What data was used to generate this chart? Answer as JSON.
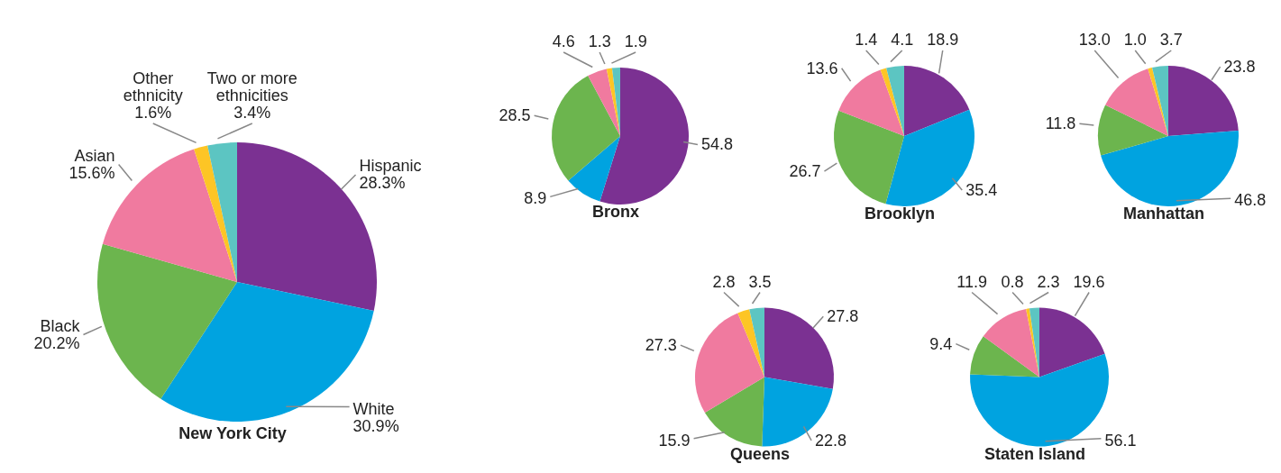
{
  "chart_data": [
    {
      "type": "pie",
      "title": "New York City",
      "categories": [
        "Hispanic",
        "White",
        "Black",
        "Asian",
        "Other ethnicity",
        "Two or more ethnicities"
      ],
      "values": [
        28.3,
        30.9,
        20.2,
        15.6,
        1.6,
        3.4
      ],
      "value_labels": [
        "28.3%",
        "30.9%",
        "20.2%",
        "15.6%",
        "1.6%",
        "3.4%"
      ],
      "colors": [
        "#7b3192",
        "#00a3e0",
        "#6cb54e",
        "#f07a9f",
        "#fdc525",
        "#5cc5c2"
      ]
    },
    {
      "type": "pie",
      "title": "Bronx",
      "categories": [
        null,
        null,
        null,
        null,
        null,
        null
      ],
      "values": [
        54.8,
        8.9,
        28.5,
        4.6,
        1.3,
        1.9
      ],
      "value_labels": [
        "54.8",
        "8.9",
        "28.5",
        "4.6",
        "1.3",
        "1.9"
      ],
      "colors": [
        "#7b3192",
        "#00a3e0",
        "#6cb54e",
        "#f07a9f",
        "#fdc525",
        "#5cc5c2"
      ]
    },
    {
      "type": "pie",
      "title": "Brooklyn",
      "categories": [
        null,
        null,
        null,
        null,
        null,
        null
      ],
      "values": [
        18.9,
        35.4,
        26.7,
        13.6,
        1.4,
        4.1
      ],
      "value_labels": [
        "18.9",
        "35.4",
        "26.7",
        "13.6",
        "1.4",
        "4.1"
      ],
      "colors": [
        "#7b3192",
        "#00a3e0",
        "#6cb54e",
        "#f07a9f",
        "#fdc525",
        "#5cc5c2"
      ]
    },
    {
      "type": "pie",
      "title": "Manhattan",
      "categories": [
        null,
        null,
        null,
        null,
        null,
        null
      ],
      "values": [
        23.8,
        46.8,
        11.8,
        13.0,
        1.0,
        3.7
      ],
      "value_labels": [
        "23.8",
        "46.8",
        "11.8",
        "13.0",
        "1.0",
        "3.7"
      ],
      "colors": [
        "#7b3192",
        "#00a3e0",
        "#6cb54e",
        "#f07a9f",
        "#fdc525",
        "#5cc5c2"
      ]
    },
    {
      "type": "pie",
      "title": "Queens",
      "categories": [
        null,
        null,
        null,
        null,
        null,
        null
      ],
      "values": [
        27.8,
        22.8,
        15.9,
        27.3,
        2.8,
        3.5
      ],
      "value_labels": [
        "27.8",
        "22.8",
        "15.9",
        "27.3",
        "2.8",
        "3.5"
      ],
      "colors": [
        "#7b3192",
        "#00a3e0",
        "#6cb54e",
        "#f07a9f",
        "#fdc525",
        "#5cc5c2"
      ]
    },
    {
      "type": "pie",
      "title": "Staten Island",
      "categories": [
        null,
        null,
        null,
        null,
        null,
        null
      ],
      "values": [
        19.6,
        56.1,
        9.4,
        11.9,
        0.8,
        2.3
      ],
      "value_labels": [
        "19.6",
        "56.1",
        "9.4",
        "11.9",
        "0.8",
        "2.3"
      ],
      "colors": [
        "#7b3192",
        "#00a3e0",
        "#6cb54e",
        "#f07a9f",
        "#fdc525",
        "#5cc5c2"
      ]
    }
  ]
}
